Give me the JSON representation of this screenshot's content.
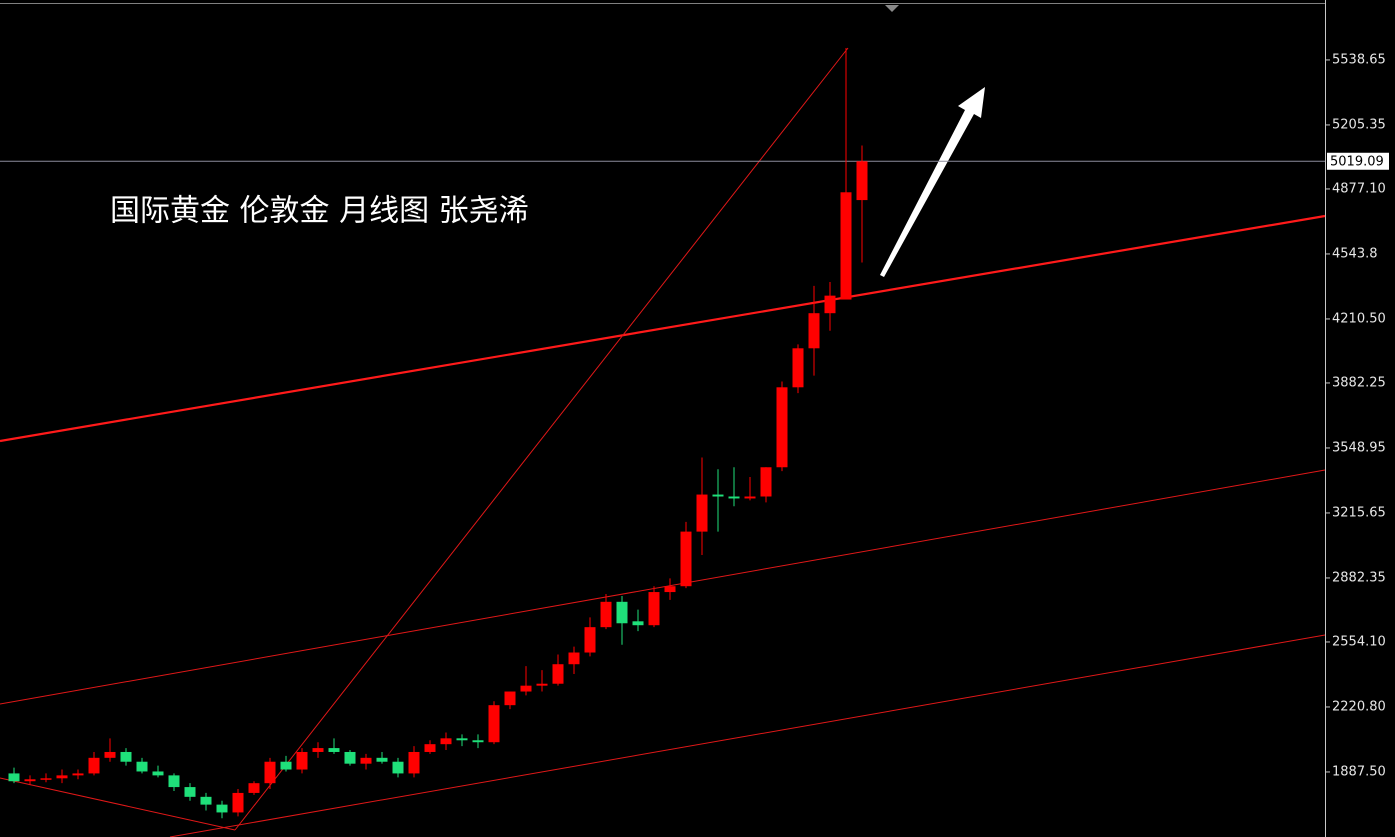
{
  "chart_data": {
    "type": "candlestick",
    "annotation": "国际黄金 伦敦金 月线图 张尧浠",
    "up_color": "#ff0000",
    "down_color": "#1fe07a",
    "ohlc": {
      "open": [
        1880,
        1840,
        1850,
        1855,
        1870,
        1880,
        1960,
        1990,
        1940,
        1890,
        1870,
        1810,
        1760,
        1720,
        1680,
        1780,
        1830,
        1940,
        1900,
        1990,
        2010,
        1990,
        1930,
        1960,
        1940,
        1880,
        1990,
        2030,
        2060,
        2050,
        2040,
        2230,
        2300,
        2330,
        2340,
        2440,
        2500,
        2630,
        2760,
        2660,
        2640,
        2810,
        2840,
        3120,
        3310,
        3300,
        3290,
        3300,
        3450,
        3860,
        4060,
        4240,
        4310,
        4820
      ],
      "high": [
        1910,
        1870,
        1880,
        1900,
        1900,
        1990,
        2060,
        2010,
        1960,
        1920,
        1880,
        1830,
        1780,
        1740,
        1800,
        1840,
        1960,
        1970,
        2010,
        2040,
        2060,
        2000,
        1980,
        1990,
        1960,
        2020,
        2050,
        2090,
        2080,
        2080,
        2250,
        2300,
        2430,
        2410,
        2490,
        2530,
        2680,
        2800,
        2790,
        2720,
        2840,
        2880,
        3170,
        3500,
        3440,
        3450,
        3400,
        3450,
        3890,
        4080,
        4380,
        4400,
        5600,
        5100
      ],
      "low": [
        1830,
        1820,
        1835,
        1830,
        1850,
        1870,
        1940,
        1920,
        1880,
        1860,
        1790,
        1740,
        1690,
        1650,
        1660,
        1770,
        1800,
        1890,
        1880,
        1960,
        1980,
        1920,
        1900,
        1930,
        1860,
        1860,
        1980,
        2000,
        2020,
        2010,
        2030,
        2210,
        2280,
        2300,
        2330,
        2390,
        2480,
        2620,
        2540,
        2610,
        2630,
        2770,
        2830,
        3000,
        3120,
        3250,
        3280,
        3270,
        3430,
        3830,
        3920,
        4150,
        4310,
        4500
      ],
      "close": [
        1840,
        1850,
        1855,
        1870,
        1880,
        1960,
        1990,
        1940,
        1890,
        1870,
        1810,
        1760,
        1720,
        1680,
        1780,
        1830,
        1940,
        1900,
        1990,
        2010,
        1990,
        1930,
        1960,
        1940,
        1880,
        1990,
        2030,
        2060,
        2050,
        2040,
        2230,
        2300,
        2330,
        2340,
        2440,
        2500,
        2630,
        2760,
        2650,
        2640,
        2810,
        2840,
        3120,
        3310,
        3300,
        3290,
        3300,
        3450,
        3860,
        4060,
        4240,
        4330,
        4860,
        5019.09
      ]
    },
    "current_price": 5019.09,
    "ylim": [
      1554,
      5846
    ],
    "yticks": [
      5538.65,
      5205.35,
      {
        "value": 4877.1,
        "label": "4877.10"
      },
      4543.8,
      {
        "value": 4210.5,
        "label": "4210.50"
      },
      3882.25,
      3548.95,
      3215.65,
      2882.35,
      {
        "value": 2554.1,
        "label": "2554.10"
      },
      {
        "value": 2220.8,
        "label": "2220.80"
      },
      {
        "value": 1887.5,
        "label": "1887.50"
      }
    ]
  }
}
